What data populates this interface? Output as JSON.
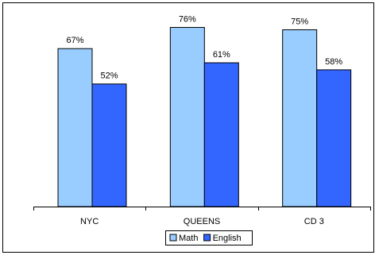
{
  "chart_data": {
    "type": "bar",
    "title": "",
    "xlabel": "",
    "ylabel": "",
    "ylim": [
      0,
      100
    ],
    "grid": false,
    "legend_position": "bottom",
    "categories": [
      "NYC",
      "QUEENS",
      "CD 3"
    ],
    "series": [
      {
        "name": "Math",
        "values": [
          67,
          76,
          75
        ],
        "labels": [
          "67%",
          "76%",
          "75%"
        ],
        "color": "#99ccff"
      },
      {
        "name": "English",
        "values": [
          52,
          61,
          58
        ],
        "labels": [
          "52%",
          "61%",
          "58%"
        ],
        "color": "#3366ff"
      }
    ]
  }
}
